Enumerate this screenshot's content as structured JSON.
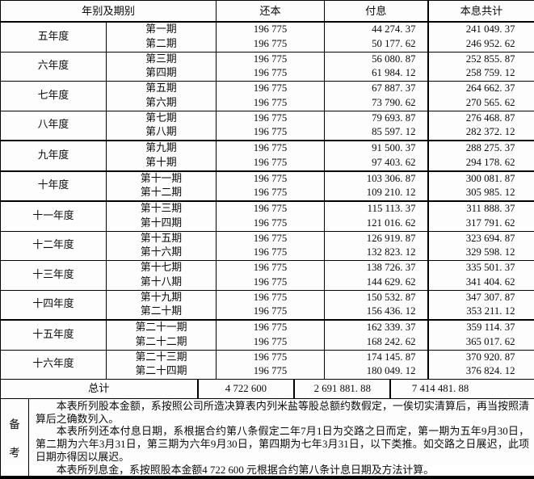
{
  "table": {
    "headers": {
      "year_period": "年别及期别",
      "principal": "还本",
      "interest": "付息",
      "total": "本息共计"
    },
    "groups": [
      {
        "year": "五年度",
        "rows": [
          {
            "period": "第一期",
            "principal": "196 775",
            "interest": "44 274. 37",
            "total": "241 049. 37"
          },
          {
            "period": "第二期",
            "principal": "196 775",
            "interest": "50 177. 62",
            "total": "246 952. 62"
          }
        ]
      },
      {
        "year": "六年度",
        "rows": [
          {
            "period": "第三期",
            "principal": "196 775",
            "interest": "56 080. 87",
            "total": "252 855. 87"
          },
          {
            "period": "第四期",
            "principal": "196 775",
            "interest": "61 984. 12",
            "total": "258 759. 12"
          }
        ]
      },
      {
        "year": "七年度",
        "rows": [
          {
            "period": "第五期",
            "principal": "196 775",
            "interest": "67 887. 37",
            "total": "264 662. 37"
          },
          {
            "period": "第六期",
            "principal": "196 775",
            "interest": "73 790. 62",
            "total": "270 565. 62"
          }
        ]
      },
      {
        "year": "八年度",
        "rows": [
          {
            "period": "第七期",
            "principal": "196 775",
            "interest": "79 693. 87",
            "total": "276 468. 87"
          },
          {
            "period": "第八期",
            "principal": "196 775",
            "interest": "85 597. 12",
            "total": "282 372. 12"
          }
        ]
      },
      {
        "year": "九年度",
        "rows": [
          {
            "period": "第九期",
            "principal": "196 775",
            "interest": "91 500. 37",
            "total": "288 275. 37"
          },
          {
            "period": "第十期",
            "principal": "196 775",
            "interest": "97 403. 62",
            "total": "294 178. 62"
          }
        ]
      },
      {
        "year": "十年度",
        "rows": [
          {
            "period": "第十一期",
            "principal": "196 775",
            "interest": "103 306. 87",
            "total": "300 081. 87"
          },
          {
            "period": "第十二期",
            "principal": "196 775",
            "interest": "109 210. 12",
            "total": "305 985. 12"
          }
        ]
      },
      {
        "year": "十一年度",
        "rows": [
          {
            "period": "第十三期",
            "principal": "196 775",
            "interest": "115 113. 37",
            "total": "311 888. 37"
          },
          {
            "period": "第十四期",
            "principal": "196 775",
            "interest": "121 016. 62",
            "total": "317 791. 62"
          }
        ]
      },
      {
        "year": "十二年度",
        "rows": [
          {
            "period": "第十五期",
            "principal": "196 775",
            "interest": "126 919. 87",
            "total": "323 694. 87"
          },
          {
            "period": "第十六期",
            "principal": "196 775",
            "interest": "132 823. 12",
            "total": "329 598. 12"
          }
        ]
      },
      {
        "year": "十三年度",
        "rows": [
          {
            "period": "第十七期",
            "principal": "196 775",
            "interest": "138 726. 37",
            "total": "335 501. 37"
          },
          {
            "period": "第十八期",
            "principal": "196 775",
            "interest": "144 629. 62",
            "total": "341 404. 62"
          }
        ]
      },
      {
        "year": "十四年度",
        "rows": [
          {
            "period": "第十九期",
            "principal": "196 775",
            "interest": "150 532. 87",
            "total": "347 307. 87"
          },
          {
            "period": "第二十期",
            "principal": "196 775",
            "interest": "156 436. 12",
            "total": "353 211. 12"
          }
        ]
      },
      {
        "year": "十五年度",
        "rows": [
          {
            "period": "第二十一期",
            "principal": "196 775",
            "interest": "162 339. 37",
            "total": "359 114. 37"
          },
          {
            "period": "第二十二期",
            "principal": "196 775",
            "interest": "168 242. 62",
            "total": "365 017. 62"
          }
        ]
      },
      {
        "year": "十六年度",
        "rows": [
          {
            "period": "第二十三期",
            "principal": "196 775",
            "interest": "174 145. 87",
            "total": "370 920. 87"
          },
          {
            "period": "第二十四期",
            "principal": "196 775",
            "interest": "180 049. 12",
            "total": "376 824. 12"
          }
        ]
      }
    ],
    "total_row": {
      "label": "总计",
      "principal": "4 722 600",
      "interest": "2 691 881. 88",
      "total": "7 414 481. 88"
    }
  },
  "notes": {
    "label_chars": [
      "备",
      "考"
    ],
    "paragraphs": [
      "本表所列股本金额，系按照公司所造决算表内列米盐等股总额约数假定，一俟切实清算后，再当按照清算后之确数列入。",
      "本表所列还本付息日期，系根据合约第八条假定二年7月1日为交路之日而定，第一期为五年9月30日，第二期为六年3月31日，第三期为六年9月30日，第四期为七年3月31日，以下类推。如交路之日展迟，此项日期亦得因以展迟。",
      "本表所列息金，系按照股本金额4 722 600 元根据合约第八条计息日期及方法计算。"
    ]
  }
}
